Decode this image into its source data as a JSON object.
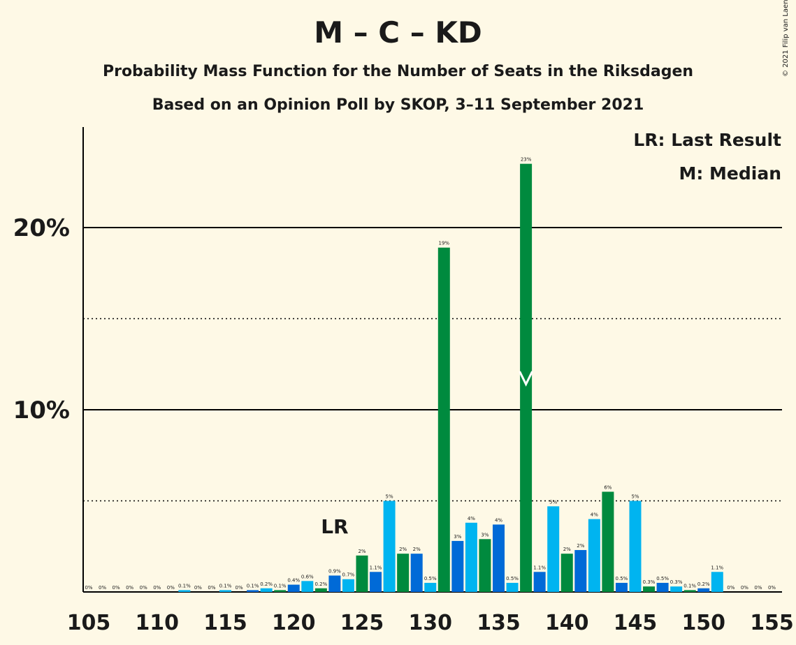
{
  "title": "M – C – KD",
  "subtitle": "Probability Mass Function for the Number of Seats in the Riksdagen",
  "subtitle2": "Based on an Opinion Poll by SKOP, 3–11 September 2021",
  "copyright": "© 2021 Filip van Laenen",
  "legend": {
    "last_result": "LR: Last Result",
    "median": "M: Median"
  },
  "colors": {
    "background": "#FEF9E6",
    "M": "#006AD7",
    "C": "#00B4F0",
    "KD": "#008A3E",
    "grid": "#000000",
    "median_mark": "#FFFFFF"
  },
  "chart_data": {
    "type": "bar",
    "x": [
      105,
      106,
      107,
      108,
      109,
      110,
      111,
      112,
      113,
      114,
      115,
      116,
      117,
      118,
      119,
      120,
      121,
      122,
      123,
      124,
      125,
      126,
      127,
      128,
      129,
      130,
      131,
      132,
      133,
      134,
      135,
      136,
      137,
      138,
      139,
      140,
      141,
      142,
      143,
      144,
      145,
      146,
      147,
      148,
      149,
      150,
      151,
      152,
      153,
      154,
      155
    ],
    "values": [
      0,
      0,
      0,
      0,
      0,
      0,
      0,
      0.1,
      0,
      0,
      0.1,
      0,
      0.1,
      0.2,
      0.1,
      0.4,
      0.6,
      0.2,
      0.9,
      0.7,
      2.0,
      1.1,
      5.0,
      2.1,
      2.1,
      0.5,
      18.9,
      2.8,
      3.8,
      2.9,
      3.7,
      0.5,
      23.5,
      1.1,
      4.7,
      2.1,
      2.3,
      4.0,
      5.5,
      0.5,
      5.0,
      0.3,
      0.5,
      0.3,
      0.1,
      0.2,
      1.1,
      0,
      0,
      0,
      0
    ],
    "labels": [
      "0%",
      "0%",
      "0%",
      "0%",
      "0%",
      "0%",
      "0%",
      "0.1%",
      "0%",
      "0%",
      "0.1%",
      "0%",
      "0.1%",
      "0.2%",
      "0.1%",
      "0.4%",
      "0.6%",
      "0.2%",
      "0.9%",
      "0.7%",
      "2%",
      "1.1%",
      "5%",
      "2%",
      "2%",
      "0.5%",
      "19%",
      "3%",
      "4%",
      "3%",
      "4%",
      "0.5%",
      "23%",
      "1.1%",
      "5%",
      "2%",
      "2%",
      "4%",
      "6%",
      "0.5%",
      "5%",
      "0.3%",
      "0.5%",
      "0.3%",
      "0.1%",
      "0.2%",
      "1.1%",
      "0%",
      "0%",
      "0%",
      "0%"
    ],
    "color_cycle": [
      "M",
      "C",
      "KD"
    ],
    "xlim": [
      105,
      155
    ],
    "ylim": [
      0,
      25
    ],
    "x_ticks": [
      105,
      110,
      115,
      120,
      125,
      130,
      135,
      140,
      145,
      150,
      155
    ],
    "y_ticks": [
      {
        "value": 10,
        "label": "10%"
      },
      {
        "value": 20,
        "label": "20%"
      }
    ],
    "dotted_gridlines": [
      5,
      15
    ],
    "last_result": {
      "seat": 123,
      "label": "LR"
    },
    "median": {
      "seat": 137
    }
  }
}
